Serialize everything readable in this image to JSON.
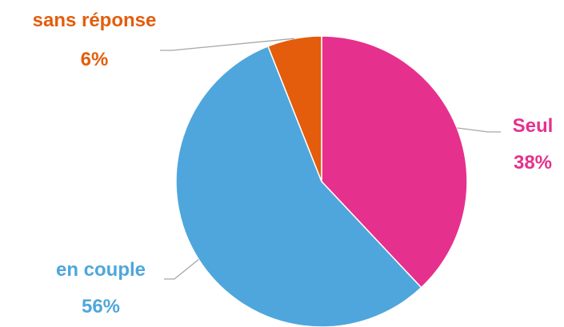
{
  "chart_data": {
    "type": "pie",
    "title": "",
    "slices": [
      {
        "label": "Seul",
        "value": 38,
        "value_label": "38%",
        "color": "#E6308E"
      },
      {
        "label": "en couple",
        "value": 56,
        "value_label": "56%",
        "color": "#4FA6DC"
      },
      {
        "label": "sans réponse",
        "value": 6,
        "value_label": "6%",
        "color": "#E35D0C"
      }
    ],
    "leader_line_color": "#A6A6A6",
    "legend": "none"
  }
}
